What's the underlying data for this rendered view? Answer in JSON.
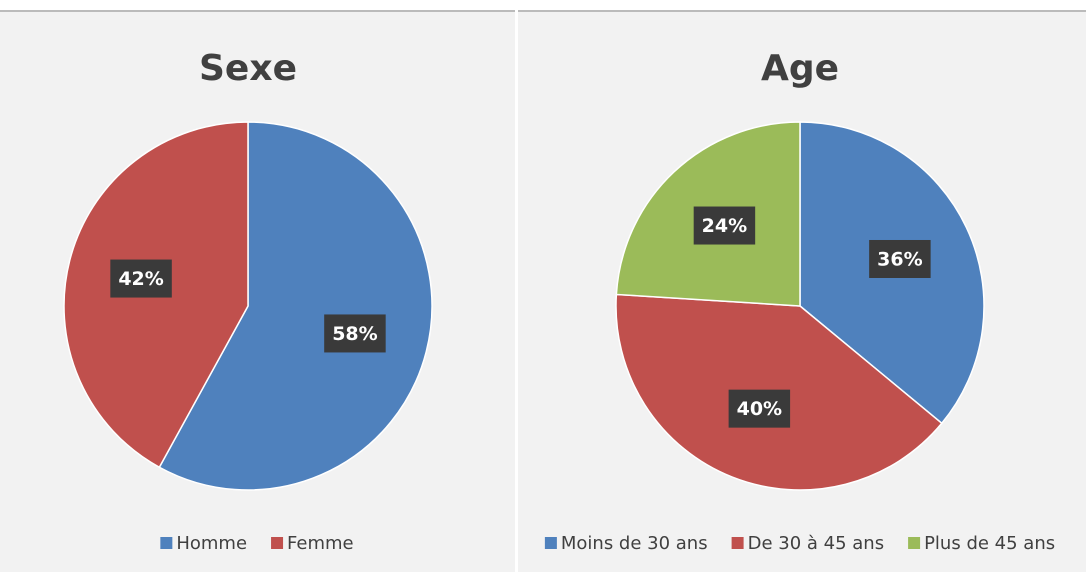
{
  "chart_data": [
    {
      "type": "pie",
      "title": "Sexe",
      "categories": [
        "Homme",
        "Femme"
      ],
      "values": [
        58,
        42
      ],
      "value_labels": [
        "58%",
        "42%"
      ],
      "colors": [
        "#4f81bd",
        "#c0504d"
      ],
      "legend": "bottom"
    },
    {
      "type": "pie",
      "title": "Age",
      "categories": [
        "Moins de 30 ans",
        "De 30 à 45 ans",
        "Plus de 45 ans"
      ],
      "values": [
        36,
        40,
        24
      ],
      "value_labels": [
        "36%",
        "40%",
        "24%"
      ],
      "colors": [
        "#4f81bd",
        "#c0504d",
        "#9bbb59"
      ],
      "legend": "bottom"
    }
  ]
}
